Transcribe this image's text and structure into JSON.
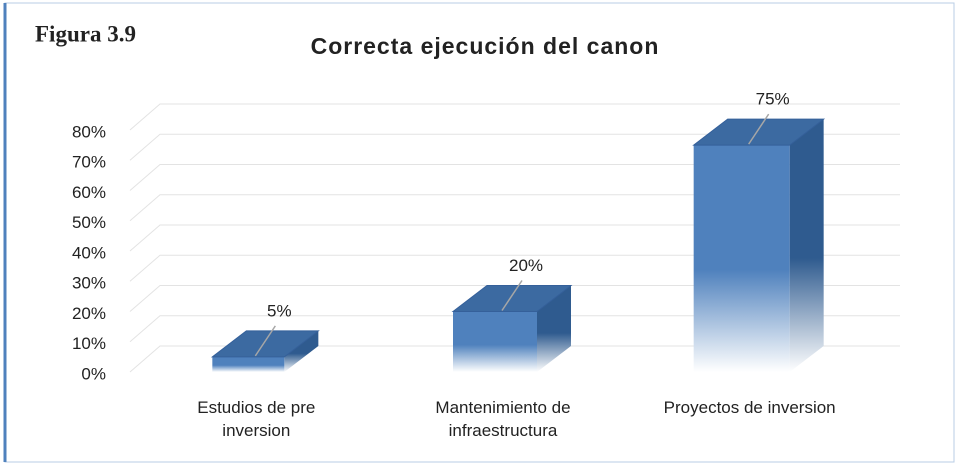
{
  "chart_data": {
    "type": "bar3d",
    "figure_label": "Figura 3.9",
    "title": "Correcta ejecución del canon",
    "categories": [
      "Estudios de pre inversion",
      "Mantenimiento de infraestructura",
      "Proyectos de inversion"
    ],
    "values": [
      5,
      20,
      75
    ],
    "value_labels": [
      "5%",
      "20%",
      "75%"
    ],
    "color": "#4f81bd",
    "ylim": [
      0,
      80
    ],
    "yticks": [
      {
        "value": 0,
        "label": "0%"
      },
      {
        "value": 10,
        "label": "10%"
      },
      {
        "value": 20,
        "label": "20%"
      },
      {
        "value": 30,
        "label": "30%"
      },
      {
        "value": 40,
        "label": "40%"
      },
      {
        "value": 50,
        "label": "50%"
      },
      {
        "value": 60,
        "label": "60%"
      },
      {
        "value": 70,
        "label": "70%"
      },
      {
        "value": 80,
        "label": "80%"
      }
    ],
    "grid": true
  }
}
